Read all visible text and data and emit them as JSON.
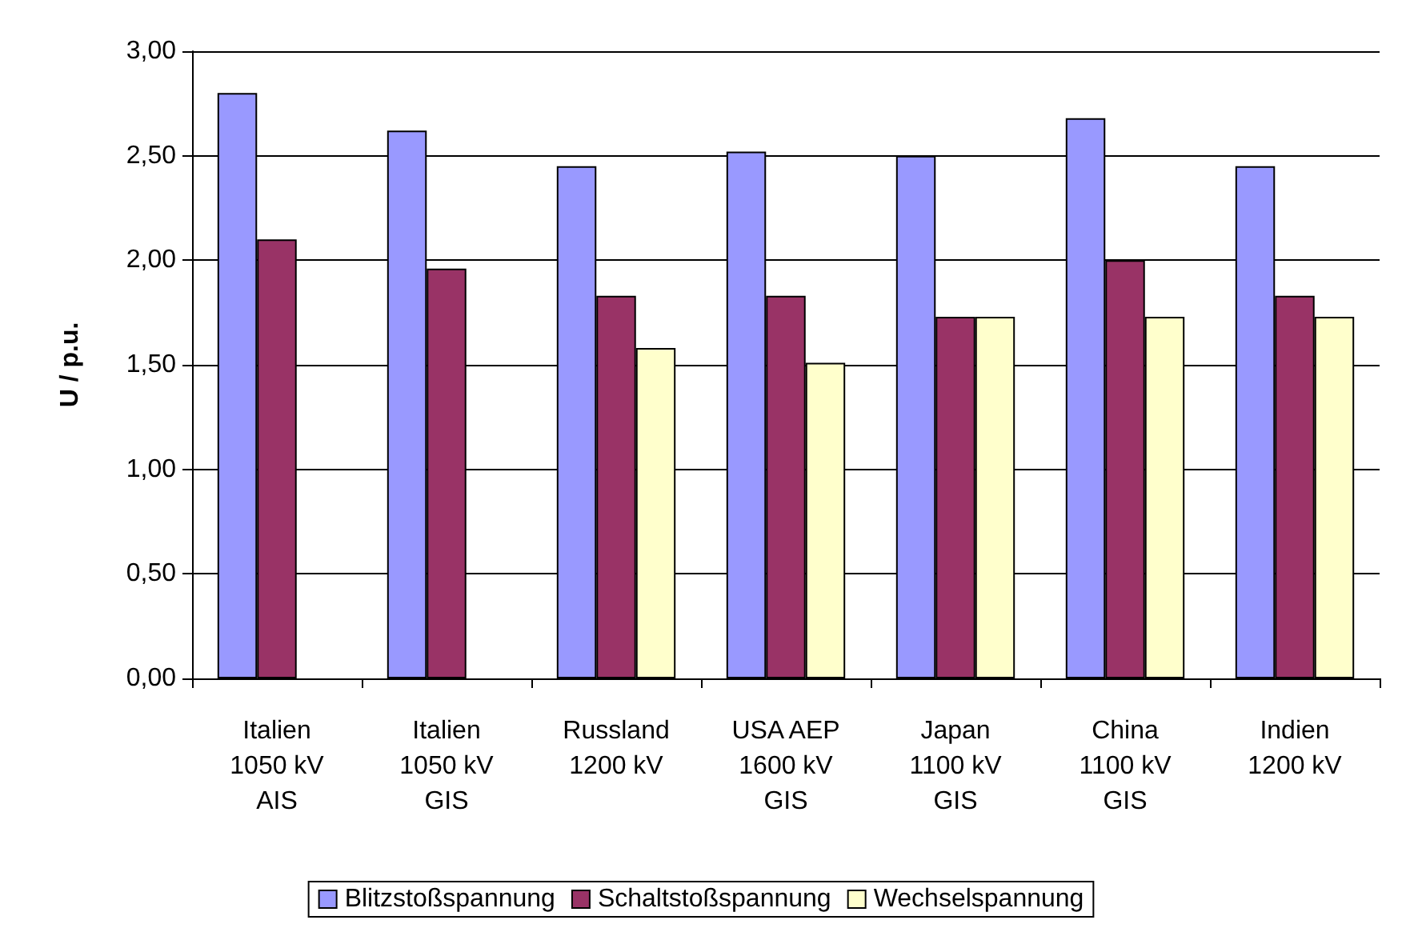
{
  "chart_data": {
    "type": "bar",
    "ylabel": "U / p.u.",
    "categories": [
      "Italien\n1050 kV\nAIS",
      "Italien\n1050 kV\nGIS",
      "Russland\n1200 kV",
      "USA AEP\n1600 kV\nGIS",
      "Japan\n1100 kV\nGIS",
      "China\n1100 kV\nGIS",
      "Indien\n1200 kV"
    ],
    "series": [
      {
        "name": "Blitzstoßspannung",
        "color": "#9999ff",
        "values": [
          2.8,
          2.62,
          2.45,
          2.52,
          2.5,
          2.68,
          2.45
        ]
      },
      {
        "name": "Schaltstoßspannung",
        "color": "#993366",
        "values": [
          2.1,
          1.96,
          1.83,
          1.83,
          1.73,
          2.0,
          1.83
        ]
      },
      {
        "name": "Wechselspannung",
        "color": "#ffffcc",
        "values": [
          null,
          null,
          1.58,
          1.51,
          1.73,
          1.73,
          1.73
        ]
      }
    ],
    "ylim": [
      0,
      3
    ],
    "yticks": [
      {
        "value": 0,
        "label": "0,00"
      },
      {
        "value": 0.5,
        "label": "0,50"
      },
      {
        "value": 1,
        "label": "1,00"
      },
      {
        "value": 1.5,
        "label": "1,50"
      },
      {
        "value": 2,
        "label": "2,00"
      },
      {
        "value": 2.5,
        "label": "2,50"
      },
      {
        "value": 3,
        "label": "3,00"
      }
    ],
    "grid": "y",
    "legend": "bottom"
  }
}
